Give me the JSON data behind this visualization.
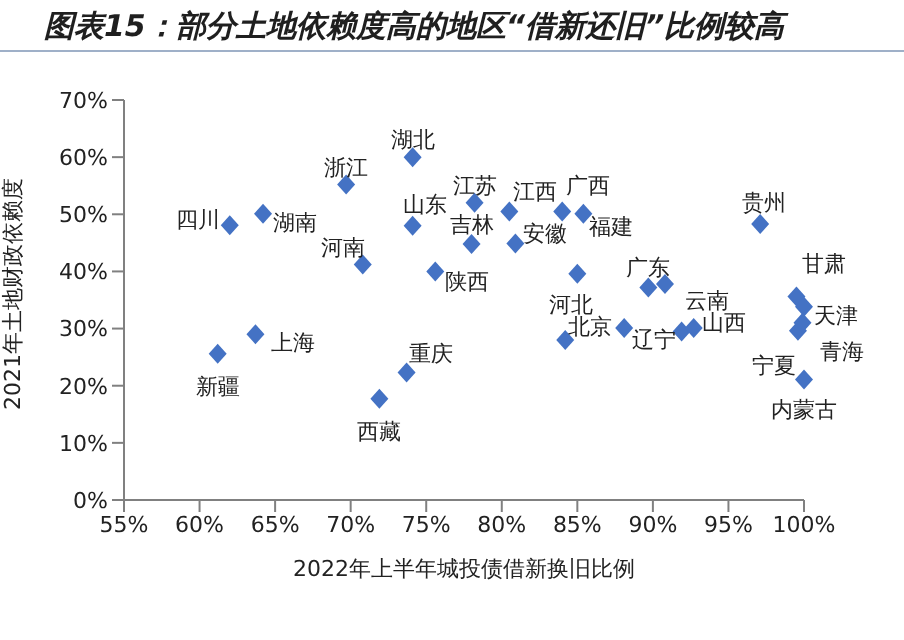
{
  "chart_data": {
    "type": "scatter",
    "title": "图表15：部分土地依赖度高的地区“借新还旧”比例较高",
    "xlabel": "2022年上半年城投债借新换旧比例",
    "ylabel": "2021年土地财政依赖度",
    "marker": "diamond",
    "legend": false,
    "grid": false,
    "xlim": [
      55,
      100
    ],
    "xticks": [
      {
        "value": 55,
        "label": "55%"
      },
      {
        "value": 60,
        "label": "60%"
      },
      {
        "value": 65,
        "label": "65%"
      },
      {
        "value": 70,
        "label": "70%"
      },
      {
        "value": 75,
        "label": "75%"
      },
      {
        "value": 80,
        "label": "80%"
      },
      {
        "value": 85,
        "label": "85%"
      },
      {
        "value": 90,
        "label": "90%"
      },
      {
        "value": 95,
        "label": "95%"
      },
      {
        "value": 100,
        "label": "100%"
      }
    ],
    "ylim": [
      0,
      70
    ],
    "yticks": [
      {
        "value": 0,
        "label": "0%"
      },
      {
        "value": 10,
        "label": "10%"
      },
      {
        "value": 20,
        "label": "20%"
      },
      {
        "value": 30,
        "label": "30%"
      },
      {
        "value": 40,
        "label": "40%"
      },
      {
        "value": 50,
        "label": "50%"
      },
      {
        "value": 60,
        "label": "60%"
      },
      {
        "value": 70,
        "label": "70%"
      }
    ],
    "series": [
      {
        "color": "#4472c4",
        "x": [
          62.0,
          64.2,
          69.7,
          74.1,
          74.1,
          70.8,
          75.6,
          78.2,
          80.5,
          78.0,
          80.9,
          84.0,
          85.4,
          97.1,
          85.0,
          89.7,
          90.8,
          88.1,
          91.9,
          92.7,
          99.5,
          100,
          99.6,
          99.9,
          100,
          63.7,
          61.2,
          73.7,
          71.9,
          84.2
        ],
        "values": [
          48.1,
          50.1,
          55.2,
          60.0,
          48.0,
          41.2,
          40.0,
          52.0,
          50.5,
          44.8,
          44.9,
          50.5,
          50.1,
          48.3,
          39.6,
          37.2,
          37.8,
          30.1,
          29.5,
          30.1,
          35.6,
          33.8,
          29.6,
          31.0,
          21.1,
          29.0,
          25.6,
          22.3,
          17.7,
          28.0
        ]
      }
    ],
    "annotations": [
      {
        "text": "四川",
        "x": 62.0,
        "y": 48.1
      },
      {
        "text": "湖南",
        "x": 64.2,
        "y": 50.1
      },
      {
        "text": "浙江",
        "x": 69.7,
        "y": 55.2
      },
      {
        "text": "湖北",
        "x": 74.1,
        "y": 60.0
      },
      {
        "text": "山东",
        "x": 74.1,
        "y": 48.0
      },
      {
        "text": "河南",
        "x": 70.8,
        "y": 41.2
      },
      {
        "text": "陕西",
        "x": 75.6,
        "y": 40.0
      },
      {
        "text": "江苏",
        "x": 78.2,
        "y": 52.0
      },
      {
        "text": "江西",
        "x": 80.5,
        "y": 50.5
      },
      {
        "text": "吉林",
        "x": 78.0,
        "y": 44.8
      },
      {
        "text": "安徽",
        "x": 80.9,
        "y": 44.9
      },
      {
        "text": "广西",
        "x": 84.0,
        "y": 50.5
      },
      {
        "text": "福建",
        "x": 85.4,
        "y": 50.1
      },
      {
        "text": "贵州",
        "x": 97.1,
        "y": 48.3
      },
      {
        "text": "河北",
        "x": 85.0,
        "y": 39.6
      },
      {
        "text": "广东",
        "x": 89.7,
        "y": 37.2
      },
      {
        "text": "云南",
        "x": 90.8,
        "y": 37.8
      },
      {
        "text": "北京",
        "x": 88.1,
        "y": 30.1
      },
      {
        "text": "辽宁",
        "x": 91.9,
        "y": 29.5
      },
      {
        "text": "山西",
        "x": 92.7,
        "y": 30.1
      },
      {
        "text": "甘肃",
        "x": 99.5,
        "y": 35.6
      },
      {
        "text": "天津",
        "x": 100,
        "y": 33.8
      },
      {
        "text": "宁夏",
        "x": 99.6,
        "y": 29.6
      },
      {
        "text": "青海",
        "x": 99.9,
        "y": 31.0
      },
      {
        "text": "内蒙古",
        "x": 100,
        "y": 21.1
      },
      {
        "text": "上海",
        "x": 63.7,
        "y": 29.0
      },
      {
        "text": "新疆",
        "x": 61.2,
        "y": 25.6
      },
      {
        "text": "重庆",
        "x": 73.7,
        "y": 22.3
      },
      {
        "text": "西藏",
        "x": 71.9,
        "y": 17.7
      }
    ]
  }
}
